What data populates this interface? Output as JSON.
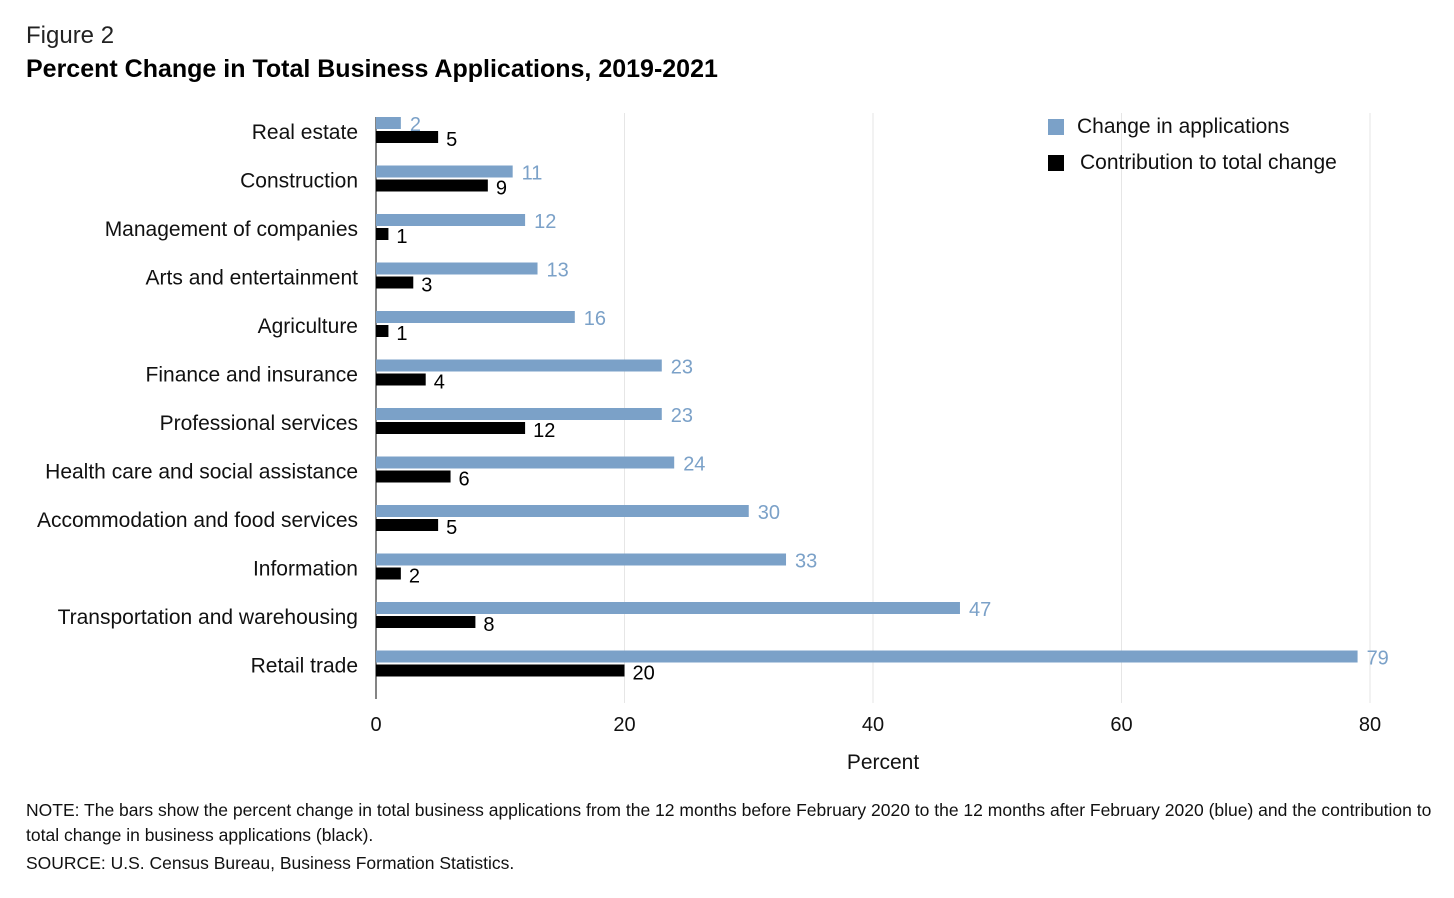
{
  "figure_label": "Figure 2",
  "title": "Percent Change in Total Business Applications, 2019-2021",
  "note": "NOTE: The bars show the percent change in total business applications from the 12 months before February 2020 to the 12 months after February 2020 (blue) and the contribution to total change in business applications (black).",
  "source": "SOURCE: U.S. Census Bureau, Business Formation Statistics.",
  "colors": {
    "applications": "#7ba1c8",
    "contribution": "#000000",
    "grid": "#e6e6e6",
    "label_blue": "#7ba1c8"
  },
  "chart_data": {
    "type": "bar",
    "orientation": "horizontal",
    "categories": [
      "Real estate",
      "Construction",
      "Management of companies",
      "Arts and entertainment",
      "Agriculture",
      "Finance and insurance",
      "Professional services",
      "Health  care and social assistance",
      "Accommodation and food services",
      "Information",
      "Transportation and warehousing",
      "Retail trade"
    ],
    "series": [
      {
        "name": "Change in applications",
        "values": [
          2,
          11,
          12,
          13,
          16,
          23,
          23,
          24,
          30,
          33,
          47,
          79
        ]
      },
      {
        "name": "Contribution to total change",
        "values": [
          5,
          9,
          1,
          3,
          1,
          4,
          12,
          6,
          5,
          2,
          8,
          20
        ]
      }
    ],
    "xlabel": "Percent",
    "ylabel": "",
    "xlim": [
      0,
      80
    ],
    "xticks": [
      "0",
      "20",
      "40",
      "60",
      "80"
    ],
    "grid": "vertical",
    "legend_position": "top-right"
  }
}
